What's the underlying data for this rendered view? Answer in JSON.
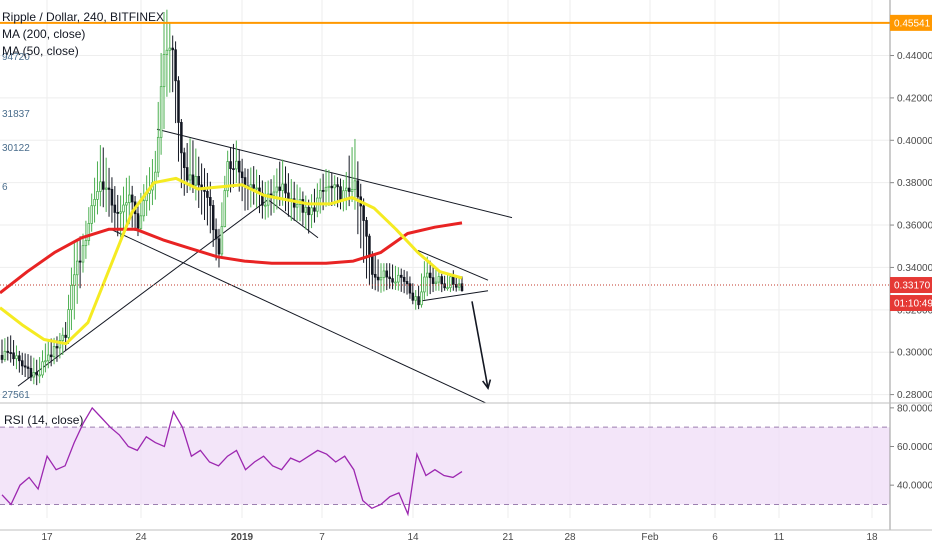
{
  "legend": {
    "symbol": "Ripple / Dollar, 240, BITFINEX",
    "ma200": "MA (200, close)",
    "ma50": "MA (50, close)",
    "rsi": "RSI (14, close)"
  },
  "colors": {
    "up": "#4caf50",
    "down": "#131722",
    "ma200": "#e82323",
    "ma50": "#f5eb22",
    "horizontal": "#ff9800",
    "price_line": "#c0392b",
    "rsi_line": "#9c27b0",
    "rsi_band": "#efdcf7",
    "grid": "#eeeeee",
    "trend": "#131722"
  },
  "chart_data": {
    "type": "candlestick",
    "title": "Ripple / Dollar, 240, BITFINEX",
    "x_ticks": [
      "17",
      "24",
      "2019",
      "7",
      "14",
      "21",
      "28",
      "Feb",
      "6",
      "11",
      "18"
    ],
    "y_ticks": [
      "0.28000",
      "0.30000",
      "0.32000",
      "0.34000",
      "0.36000",
      "0.38000",
      "0.40000",
      "0.42000",
      "0.44000"
    ],
    "ylim": [
      0.2765,
      0.4662
    ],
    "current_price": "0.33170",
    "countdown": "01:10:49",
    "horizontal_level": "0.45541",
    "left_labels": [
      "94720",
      "31837",
      "30122",
      "6",
      "27561"
    ],
    "anchors": [
      [
        0.2985,
        0.306,
        0.298
      ],
      [
        0.3,
        0.308,
        0.295
      ],
      [
        0.294,
        0.3,
        0.29
      ],
      [
        0.292,
        0.299,
        0.287
      ],
      [
        0.288,
        0.296,
        0.284
      ],
      [
        0.299,
        0.306,
        0.292
      ],
      [
        0.3,
        0.307,
        0.295
      ],
      [
        0.308,
        0.312,
        0.3
      ],
      [
        0.338,
        0.352,
        0.315
      ],
      [
        0.348,
        0.356,
        0.338
      ],
      [
        0.37,
        0.376,
        0.358
      ],
      [
        0.381,
        0.4,
        0.37
      ],
      [
        0.373,
        0.385,
        0.363
      ],
      [
        0.362,
        0.372,
        0.353
      ],
      [
        0.376,
        0.385,
        0.361
      ],
      [
        0.36,
        0.37,
        0.356
      ],
      [
        0.372,
        0.383,
        0.364
      ],
      [
        0.385,
        0.395,
        0.372
      ],
      [
        0.444,
        0.467,
        0.405
      ],
      [
        0.442,
        0.448,
        0.412
      ],
      [
        0.385,
        0.395,
        0.373
      ],
      [
        0.382,
        0.402,
        0.377
      ],
      [
        0.378,
        0.39,
        0.366
      ],
      [
        0.372,
        0.383,
        0.358
      ],
      [
        0.345,
        0.356,
        0.338
      ],
      [
        0.387,
        0.395,
        0.373
      ],
      [
        0.39,
        0.4,
        0.38
      ],
      [
        0.376,
        0.386,
        0.366
      ],
      [
        0.38,
        0.388,
        0.37
      ],
      [
        0.37,
        0.38,
        0.362
      ],
      [
        0.374,
        0.382,
        0.365
      ],
      [
        0.378,
        0.392,
        0.37
      ],
      [
        0.372,
        0.382,
        0.362
      ],
      [
        0.37,
        0.378,
        0.362
      ],
      [
        0.364,
        0.372,
        0.356
      ],
      [
        0.372,
        0.38,
        0.364
      ],
      [
        0.378,
        0.387,
        0.369
      ],
      [
        0.376,
        0.383,
        0.369
      ],
      [
        0.374,
        0.381,
        0.366
      ],
      [
        0.38,
        0.405,
        0.372
      ],
      [
        0.364,
        0.372,
        0.336
      ],
      [
        0.338,
        0.348,
        0.33
      ],
      [
        0.336,
        0.342,
        0.328
      ],
      [
        0.336,
        0.342,
        0.33
      ],
      [
        0.336,
        0.34,
        0.329
      ],
      [
        0.333,
        0.338,
        0.327
      ],
      [
        0.322,
        0.328,
        0.319
      ],
      [
        0.338,
        0.346,
        0.326
      ],
      [
        0.334,
        0.34,
        0.329
      ],
      [
        0.332,
        0.336,
        0.329
      ],
      [
        0.333,
        0.337,
        0.329
      ],
      [
        0.3317,
        0.335,
        0.329
      ]
    ],
    "ma200": [
      0.328,
      0.338,
      0.347,
      0.354,
      0.358,
      0.358,
      0.353,
      0.349,
      0.345,
      0.343,
      0.342,
      0.342,
      0.342,
      0.343,
      0.347,
      0.356,
      0.359,
      0.361
    ],
    "ma50": [
      0.321,
      0.313,
      0.306,
      0.304,
      0.314,
      0.34,
      0.366,
      0.38,
      0.382,
      0.377,
      0.378,
      0.379,
      0.374,
      0.372,
      0.37,
      0.37,
      0.373,
      0.368,
      0.358,
      0.347,
      0.338,
      0.335
    ],
    "rsi_ticks": [
      "40.0000",
      "60.0000",
      "80.0000"
    ],
    "rsi_ylim": [
      23,
      82
    ],
    "rsi_band": [
      30,
      70
    ],
    "rsi": [
      35,
      30,
      40,
      44,
      38,
      55,
      48,
      50,
      62,
      72,
      80,
      75,
      70,
      66,
      60,
      58,
      65,
      62,
      60,
      78,
      70,
      55,
      58,
      52,
      50,
      55,
      58,
      48,
      52,
      55,
      50,
      48,
      54,
      52,
      55,
      58,
      56,
      52,
      55,
      48,
      32,
      28,
      30,
      34,
      36,
      25,
      56,
      45,
      48,
      45,
      44,
      47
    ],
    "annotations": {
      "lines": [
        {
          "x1": 157,
          "v1": 0.4052,
          "x2": 512,
          "v2": 0.3635
        },
        {
          "x1": 110,
          "v1": 0.3582,
          "x2": 486,
          "v2": 0.276
        },
        {
          "x1": 18,
          "v1": 0.284,
          "x2": 268,
          "v2": 0.372
        },
        {
          "x1": 268,
          "v1": 0.372,
          "x2": 318,
          "v2": 0.354
        },
        {
          "x1": 418,
          "v1": 0.348,
          "x2": 488,
          "v2": 0.334
        },
        {
          "x1": 418,
          "v1": 0.324,
          "x2": 488,
          "v2": 0.329
        }
      ],
      "arrow": {
        "x1": 472,
        "v1": 0.324,
        "x2": 488,
        "v2": 0.283
      }
    }
  }
}
